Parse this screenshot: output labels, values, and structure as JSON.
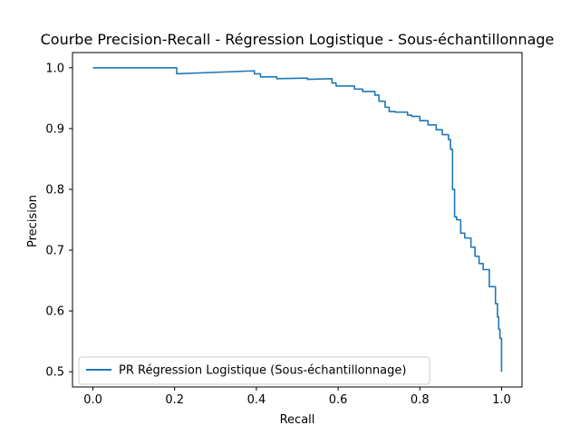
{
  "chart_data": {
    "type": "line",
    "title": "Courbe Precision-Recall - Régression Logistique - Sous-échantillonnage",
    "xlabel": "Recall",
    "ylabel": "Precision",
    "xlim": [
      -0.05,
      1.05
    ],
    "ylim": [
      0.475,
      1.025
    ],
    "x_ticks": [
      0.0,
      0.2,
      0.4,
      0.6,
      0.8,
      1.0
    ],
    "x_tick_labels": [
      "0.0",
      "0.2",
      "0.4",
      "0.6",
      "0.8",
      "1.0"
    ],
    "y_ticks": [
      0.5,
      0.6,
      0.7,
      0.8,
      0.9,
      1.0
    ],
    "y_tick_labels": [
      "0.5",
      "0.6",
      "0.7",
      "0.8",
      "0.9",
      "1.0"
    ],
    "grid": false,
    "legend_position": "lower-left",
    "series": [
      {
        "name": "PR Régression Logistique (Sous-échantillonnage)",
        "color": "#1f77b4",
        "x": [
          0.0,
          0.205,
          0.205,
          0.395,
          0.395,
          0.41,
          0.41,
          0.45,
          0.45,
          0.525,
          0.525,
          0.585,
          0.585,
          0.595,
          0.595,
          0.64,
          0.64,
          0.66,
          0.66,
          0.69,
          0.69,
          0.7,
          0.7,
          0.715,
          0.715,
          0.725,
          0.725,
          0.74,
          0.74,
          0.77,
          0.77,
          0.78,
          0.78,
          0.8,
          0.8,
          0.82,
          0.82,
          0.84,
          0.84,
          0.855,
          0.855,
          0.87,
          0.87,
          0.875,
          0.875,
          0.88,
          0.88,
          0.885,
          0.885,
          0.89,
          0.89,
          0.9,
          0.9,
          0.91,
          0.91,
          0.925,
          0.925,
          0.935,
          0.935,
          0.945,
          0.945,
          0.955,
          0.955,
          0.97,
          0.97,
          0.985,
          0.985,
          0.99,
          0.99,
          0.993,
          0.993,
          0.996,
          0.996,
          1.0,
          1.0
        ],
        "y": [
          1.0,
          1.0,
          0.99,
          0.995,
          0.99,
          0.99,
          0.985,
          0.985,
          0.982,
          0.983,
          0.981,
          0.982,
          0.975,
          0.975,
          0.97,
          0.97,
          0.965,
          0.965,
          0.961,
          0.961,
          0.955,
          0.955,
          0.945,
          0.945,
          0.935,
          0.935,
          0.928,
          0.928,
          0.927,
          0.927,
          0.922,
          0.922,
          0.92,
          0.92,
          0.913,
          0.913,
          0.906,
          0.906,
          0.898,
          0.898,
          0.89,
          0.89,
          0.882,
          0.882,
          0.866,
          0.866,
          0.8,
          0.8,
          0.755,
          0.755,
          0.75,
          0.75,
          0.728,
          0.728,
          0.72,
          0.72,
          0.705,
          0.705,
          0.69,
          0.69,
          0.678,
          0.678,
          0.668,
          0.668,
          0.64,
          0.64,
          0.612,
          0.612,
          0.59,
          0.59,
          0.57,
          0.57,
          0.555,
          0.555,
          0.5
        ]
      }
    ]
  }
}
